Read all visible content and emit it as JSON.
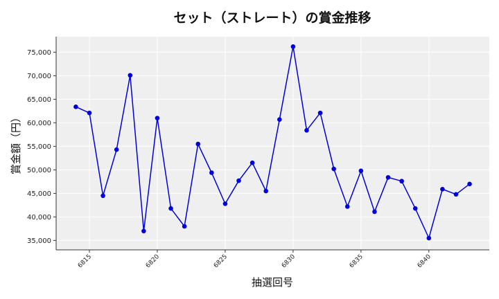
{
  "chart_data": {
    "type": "line",
    "title": "セット（ストレート）の賞金推移",
    "xlabel": "抽選回号",
    "ylabel": "賞金額（円）",
    "x": [
      6814,
      6815,
      6816,
      6817,
      6818,
      6819,
      6820,
      6821,
      6822,
      6823,
      6824,
      6825,
      6826,
      6827,
      6828,
      6829,
      6830,
      6831,
      6832,
      6833,
      6834,
      6835,
      6836,
      6837,
      6838,
      6839,
      6840,
      6841,
      6842,
      6843
    ],
    "series": [
      {
        "values": [
          63400,
          62100,
          44500,
          54300,
          70100,
          37000,
          61000,
          41800,
          38000,
          55500,
          49400,
          42800,
          47700,
          51500,
          45500,
          60700,
          76200,
          58400,
          62100,
          50200,
          42200,
          49800,
          41100,
          48400,
          47600,
          41800,
          35500,
          45900,
          44800,
          47000
        ],
        "color": "#0000dd"
      }
    ],
    "xticks": [
      "6815",
      "6820",
      "6825",
      "6830",
      "6835",
      "6840"
    ],
    "yticks": [
      "35,000",
      "40,000",
      "45,000",
      "50,000",
      "55,000",
      "60,000",
      "65,000",
      "70,000",
      "75,000"
    ],
    "xlim": [
      6812.55,
      6844.45
    ],
    "ylim": [
      33000,
      78300
    ],
    "grid": true,
    "background": "#efefef"
  }
}
